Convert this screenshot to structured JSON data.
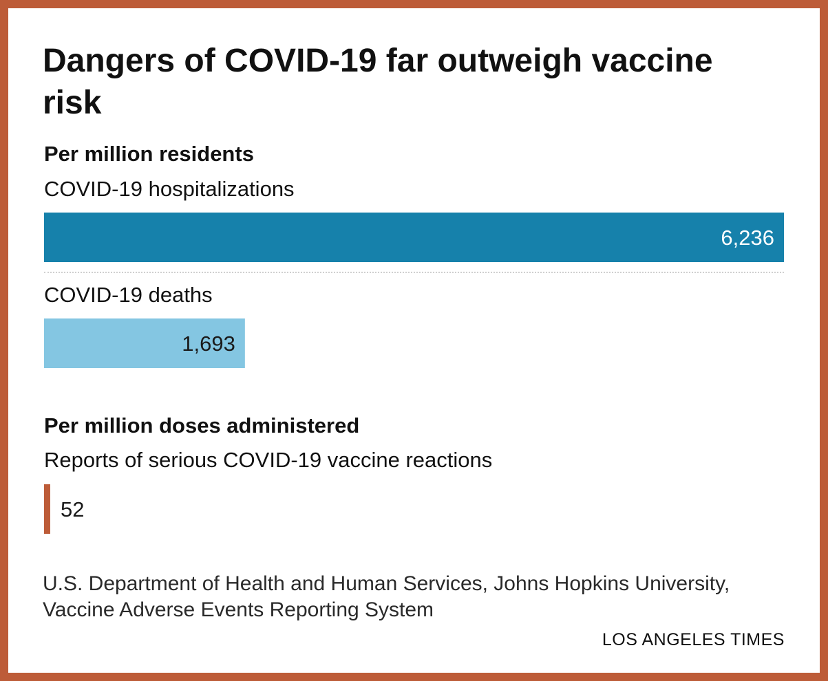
{
  "chart_data": {
    "type": "bar",
    "title": "Dangers of COVID-19 far outweigh vaccine risk",
    "groups": [
      {
        "heading": "Per million residents",
        "bars": [
          {
            "label": "COVID-19 hospitalizations",
            "value": 6236,
            "display": "6,236",
            "color": "#1681ab",
            "text_color": "#ffffff"
          },
          {
            "label": "COVID-19 deaths",
            "value": 1693,
            "display": "1,693",
            "color": "#84c6e2",
            "text_color": "#1a1a1a"
          }
        ]
      },
      {
        "heading": "Per million doses administered",
        "bars": [
          {
            "label": "Reports of serious COVID-19 vaccine reactions",
            "value": 52,
            "display": "52",
            "color": "#bd5c38",
            "text_color": "#1a1a1a"
          }
        ]
      }
    ],
    "source": "U.S. Department of Health and Human Services, Johns Hopkins University, Vaccine Adverse Events Reporting System",
    "credit": "LOS ANGELES TIMES",
    "max_value": 6236,
    "grid": false,
    "legend": "none"
  },
  "colors": {
    "frame": "#bd5c38",
    "background": "#ffffff",
    "text": "#111111"
  }
}
